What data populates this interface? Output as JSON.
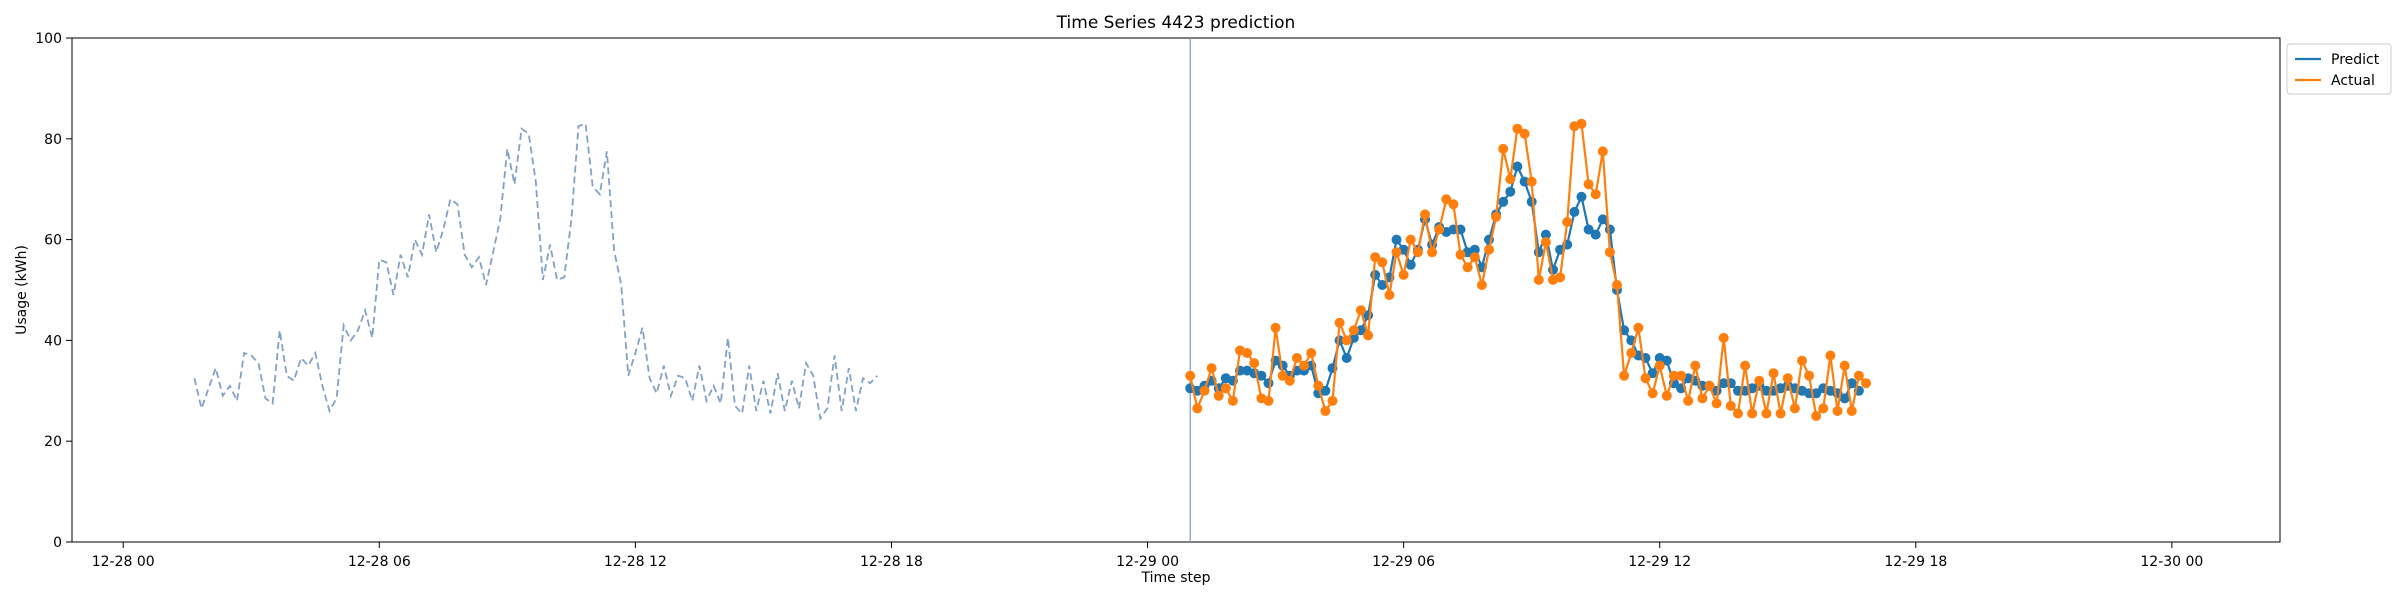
{
  "chart_data": {
    "type": "line",
    "title": "Time Series 4423 prediction",
    "xlabel": "Time step",
    "ylabel": "Usage (kWh)",
    "ylim": [
      0,
      100
    ],
    "yticks": [
      0,
      20,
      40,
      60,
      80,
      100
    ],
    "xlim": [
      -1.8,
      75.8
    ],
    "xticks": [
      {
        "t": 0,
        "label": "12-28 00"
      },
      {
        "t": 9,
        "label": "12-28 06"
      },
      {
        "t": 18,
        "label": "12-28 12"
      },
      {
        "t": 27,
        "label": "12-28 18"
      },
      {
        "t": 36,
        "label": "12-29 00"
      },
      {
        "t": 45,
        "label": "12-29 06"
      },
      {
        "t": 54,
        "label": "12-29 12"
      },
      {
        "t": 63,
        "label": "12-29 18"
      },
      {
        "t": 72,
        "label": "12-30 00"
      }
    ],
    "legend": "top-right",
    "grid": false,
    "forecast_start": 37.5,
    "history": {
      "t0": 2.5,
      "step": 0.25,
      "color": "#7896c0",
      "values": [
        32.5,
        26.5,
        30.5,
        34.5,
        29,
        31,
        28,
        37.5,
        37,
        35.5,
        28.5,
        27.5,
        42,
        33,
        32,
        36.5,
        35,
        37.5,
        31,
        26,
        28.5,
        43,
        40,
        42,
        46,
        40.5,
        56,
        55.5,
        49,
        57,
        52.5,
        60,
        57,
        65,
        57.5,
        62,
        68,
        67,
        57,
        54.5,
        56.5,
        51,
        57.5,
        64,
        78,
        71,
        82,
        81,
        71.5,
        52,
        59,
        52,
        52.5,
        64,
        82.5,
        83,
        70.5,
        69,
        77.5,
        58,
        51,
        33,
        37.5,
        42.5,
        32.5,
        29.5,
        35,
        29,
        33,
        32.5,
        28,
        35,
        28,
        31,
        27.5,
        40.5,
        27,
        25.5,
        35,
        26,
        32,
        25.5,
        33.5,
        26,
        32,
        26.5,
        35.5,
        33,
        24.5,
        26.5,
        37,
        26,
        34.5,
        26,
        32.5,
        31.5,
        33
      ]
    },
    "forecast": {
      "t0": 37.5,
      "step": 0.25,
      "series": [
        {
          "name": "Predict",
          "color": "#1f77b4",
          "values": [
            30.5,
            30,
            31,
            32,
            30.5,
            32.5,
            32,
            34,
            34,
            33.5,
            33,
            31.5,
            36,
            35,
            33,
            34,
            34,
            35,
            29.5,
            30,
            34.5,
            40,
            36.5,
            40.5,
            42,
            45,
            53,
            51,
            52.5,
            60,
            58,
            55,
            58,
            64,
            59,
            62.5,
            61.5,
            62,
            62,
            57.5,
            58,
            54.5,
            60,
            65,
            67.5,
            69.5,
            74.5,
            71.5,
            67.5,
            57.5,
            61,
            54,
            58,
            59,
            65.5,
            68.5,
            62,
            61,
            64,
            62,
            50,
            42,
            40,
            37,
            36.5,
            33.5,
            36.5,
            36,
            31.5,
            30.5,
            32.5,
            32,
            31,
            31,
            30,
            31.5,
            31.5,
            30,
            30,
            30.5,
            31,
            30,
            30,
            30.5,
            31,
            30.5,
            30,
            29.5,
            29.5,
            30.5,
            30,
            29.5,
            28.5,
            31.5,
            30
          ]
        },
        {
          "name": "Actual",
          "color": "#ff7f0e",
          "values": [
            33,
            26.5,
            30,
            34.5,
            29,
            30.5,
            28,
            38,
            37.5,
            35.5,
            28.5,
            28,
            42.5,
            33,
            32,
            36.5,
            35,
            37.5,
            31,
            26,
            28,
            43.5,
            40,
            42,
            46,
            41,
            56.5,
            55.5,
            49,
            57.5,
            53,
            60,
            57.5,
            65,
            57.5,
            62,
            68,
            67,
            57,
            54.5,
            56.5,
            51,
            58,
            64.5,
            78,
            72,
            82,
            81,
            71.5,
            52,
            59.5,
            52,
            52.5,
            63.5,
            82.5,
            83,
            71,
            69,
            77.5,
            57.5,
            51,
            33,
            37.5,
            42.5,
            32.5,
            29.5,
            35,
            29,
            33,
            33,
            28,
            35,
            28.5,
            31,
            27.5,
            40.5,
            27,
            25.5,
            35,
            25.5,
            32,
            25.5,
            33.5,
            25.5,
            32.5,
            26.5,
            36,
            33,
            25,
            26.5,
            37,
            26,
            35,
            26,
            33,
            31.5
          ]
        }
      ]
    }
  }
}
